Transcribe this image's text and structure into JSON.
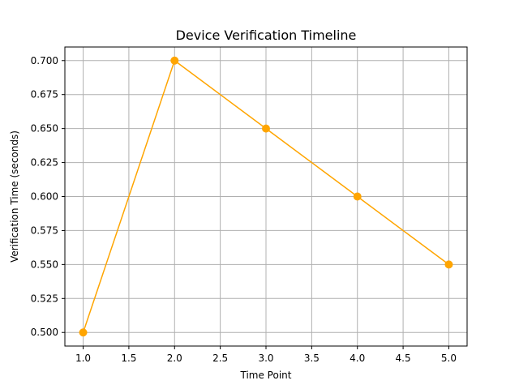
{
  "chart_data": {
    "type": "line",
    "title": "Device Verification Timeline",
    "xlabel": "Time Point",
    "ylabel": "Verification Time (seconds)",
    "x": [
      1,
      2,
      3,
      4,
      5
    ],
    "series": [
      {
        "values": [
          0.5,
          0.7,
          0.65,
          0.6,
          0.55
        ],
        "color": "#ffa500",
        "marker": "circle"
      }
    ],
    "xlim": [
      0.8,
      5.2
    ],
    "ylim": [
      0.49,
      0.71
    ],
    "xticks": [
      "1.0",
      "1.5",
      "2.0",
      "2.5",
      "3.0",
      "3.5",
      "4.0",
      "4.5",
      "5.0"
    ],
    "yticks": [
      "0.500",
      "0.525",
      "0.550",
      "0.575",
      "0.600",
      "0.625",
      "0.650",
      "0.675",
      "0.700"
    ],
    "grid": true,
    "legend": "none"
  }
}
